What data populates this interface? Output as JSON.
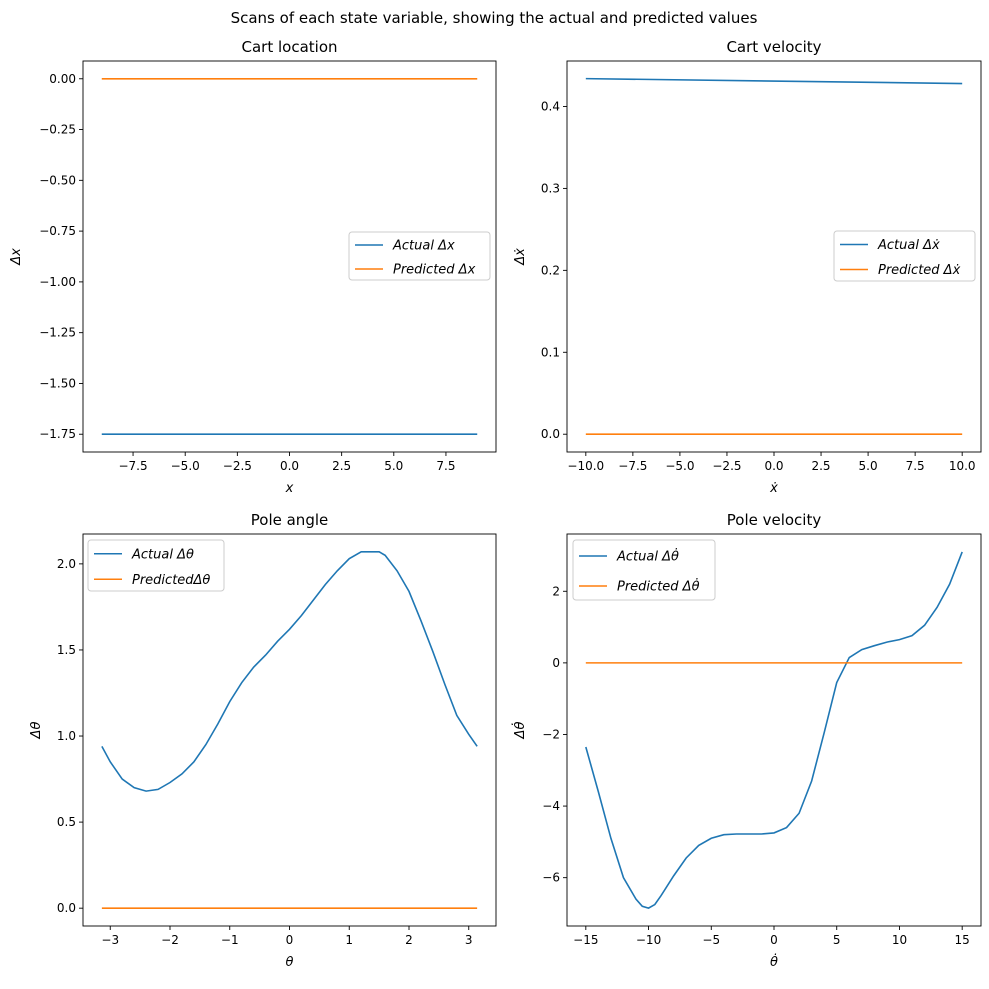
{
  "figure": {
    "suptitle": "Scans of each state variable, showing the actual and predicted values"
  },
  "colors": {
    "actual": "#1f77b4",
    "predicted": "#ff7f0e"
  },
  "chart_data": [
    {
      "type": "line",
      "title": "Cart location",
      "xlabel": "x",
      "ylabel": "Δx",
      "xlim": [
        -9.9,
        9.9
      ],
      "ylim": [
        -1.8375,
        0.0875
      ],
      "xticks": [
        -7.5,
        -5.0,
        -2.5,
        0.0,
        2.5,
        5.0,
        7.5
      ],
      "xtick_labels": [
        "−7.5",
        "−5.0",
        "−2.5",
        "0.0",
        "2.5",
        "5.0",
        "7.5"
      ],
      "yticks": [
        0.0,
        -0.25,
        -0.5,
        -0.75,
        -1.0,
        -1.25,
        -1.5,
        -1.75
      ],
      "ytick_labels": [
        "0.00",
        "−0.25",
        "−0.50",
        "−0.75",
        "−1.00",
        "−1.25",
        "−1.50",
        "−1.75"
      ],
      "legend_position": "center-right",
      "series": [
        {
          "name": "Actual  Δx",
          "x": [
            -9,
            9
          ],
          "y": [
            -1.75,
            -1.75
          ]
        },
        {
          "name": "Predicted Δx",
          "x": [
            -9,
            9
          ],
          "y": [
            0,
            0
          ]
        }
      ]
    },
    {
      "type": "line",
      "title": "Cart velocity",
      "xlabel": "ẋ",
      "ylabel": "Δẋ",
      "xlim": [
        -11,
        11
      ],
      "ylim": [
        -0.0217,
        0.4555
      ],
      "xticks": [
        -10,
        -7.5,
        -5,
        -2.5,
        0,
        2.5,
        5,
        7.5,
        10
      ],
      "xtick_labels": [
        "−10.0",
        "−7.5",
        "−5.0",
        "−2.5",
        "0.0",
        "2.5",
        "5.0",
        "7.5",
        "10.0"
      ],
      "yticks": [
        0.0,
        0.1,
        0.2,
        0.3,
        0.4
      ],
      "ytick_labels": [
        "0.0",
        "0.1",
        "0.2",
        "0.3",
        "0.4"
      ],
      "legend_position": "center-right",
      "series": [
        {
          "name": "Actual  Δẋ",
          "x": [
            -10,
            10
          ],
          "y": [
            0.434,
            0.428
          ]
        },
        {
          "name": "Predicted Δẋ",
          "x": [
            -10,
            10
          ],
          "y": [
            0,
            0
          ]
        }
      ]
    },
    {
      "type": "line",
      "title": "Pole angle",
      "xlabel": "θ",
      "ylabel": "Δθ",
      "xlim": [
        -3.456,
        3.456
      ],
      "ylim": [
        -0.1035,
        2.1735
      ],
      "xticks": [
        -3,
        -2,
        -1,
        0,
        1,
        2,
        3
      ],
      "xtick_labels": [
        "−3",
        "−2",
        "−1",
        "0",
        "1",
        "2",
        "3"
      ],
      "yticks": [
        0.0,
        0.5,
        1.0,
        1.5,
        2.0
      ],
      "ytick_labels": [
        "0.0",
        "0.5",
        "1.0",
        "1.5",
        "2.0"
      ],
      "legend_position": "upper-left",
      "series": [
        {
          "name": "Actual Δθ",
          "x": [
            -3.14,
            -3.0,
            -2.8,
            -2.6,
            -2.4,
            -2.2,
            -2.0,
            -1.8,
            -1.6,
            -1.4,
            -1.2,
            -1.0,
            -0.8,
            -0.6,
            -0.4,
            -0.2,
            0.0,
            0.2,
            0.4,
            0.6,
            0.8,
            1.0,
            1.2,
            1.4,
            1.5,
            1.6,
            1.8,
            2.0,
            2.2,
            2.4,
            2.6,
            2.8,
            3.0,
            3.14
          ],
          "y": [
            0.94,
            0.85,
            0.75,
            0.7,
            0.68,
            0.69,
            0.73,
            0.78,
            0.85,
            0.95,
            1.07,
            1.2,
            1.31,
            1.4,
            1.47,
            1.55,
            1.62,
            1.7,
            1.79,
            1.88,
            1.96,
            2.03,
            2.07,
            2.07,
            2.07,
            2.05,
            1.96,
            1.84,
            1.67,
            1.49,
            1.3,
            1.12,
            1.01,
            0.94
          ]
        },
        {
          "name": "PredictedΔθ",
          "x": [
            -3.14,
            3.14
          ],
          "y": [
            0,
            0
          ]
        }
      ]
    },
    {
      "type": "line",
      "title": "Pole velocity",
      "xlabel": "θ̇",
      "ylabel": "Δθ̇",
      "xlim": [
        -16.5,
        16.5
      ],
      "ylim": [
        -7.35,
        3.6
      ],
      "xticks": [
        -15,
        -10,
        -5,
        0,
        5,
        10,
        15
      ],
      "xtick_labels": [
        "−15",
        "−10",
        "−5",
        "0",
        "5",
        "10",
        "15"
      ],
      "yticks": [
        -6,
        -4,
        -2,
        0,
        2
      ],
      "ytick_labels": [
        "−6",
        "−4",
        "−2",
        "0",
        "2"
      ],
      "legend_position": "upper-left",
      "series": [
        {
          "name": "Actual  Δθ̇",
          "x": [
            -15,
            -14,
            -13,
            -12,
            -11,
            -10.5,
            -10,
            -9.5,
            -9,
            -8,
            -7,
            -6,
            -5,
            -4,
            -3,
            -2,
            -1,
            0,
            1,
            2,
            3,
            4,
            5,
            6,
            7,
            8,
            9,
            10,
            11,
            12,
            13,
            14,
            15
          ],
          "y": [
            -2.35,
            -3.6,
            -4.9,
            -6.0,
            -6.6,
            -6.8,
            -6.85,
            -6.75,
            -6.5,
            -5.95,
            -5.45,
            -5.1,
            -4.9,
            -4.8,
            -4.78,
            -4.78,
            -4.78,
            -4.75,
            -4.6,
            -4.2,
            -3.3,
            -1.95,
            -0.55,
            0.15,
            0.37,
            0.48,
            0.58,
            0.65,
            0.76,
            1.05,
            1.55,
            2.2,
            3.1
          ]
        },
        {
          "name": "Predicted Δθ̇",
          "x": [
            -15,
            15
          ],
          "y": [
            0,
            0
          ]
        }
      ]
    }
  ]
}
